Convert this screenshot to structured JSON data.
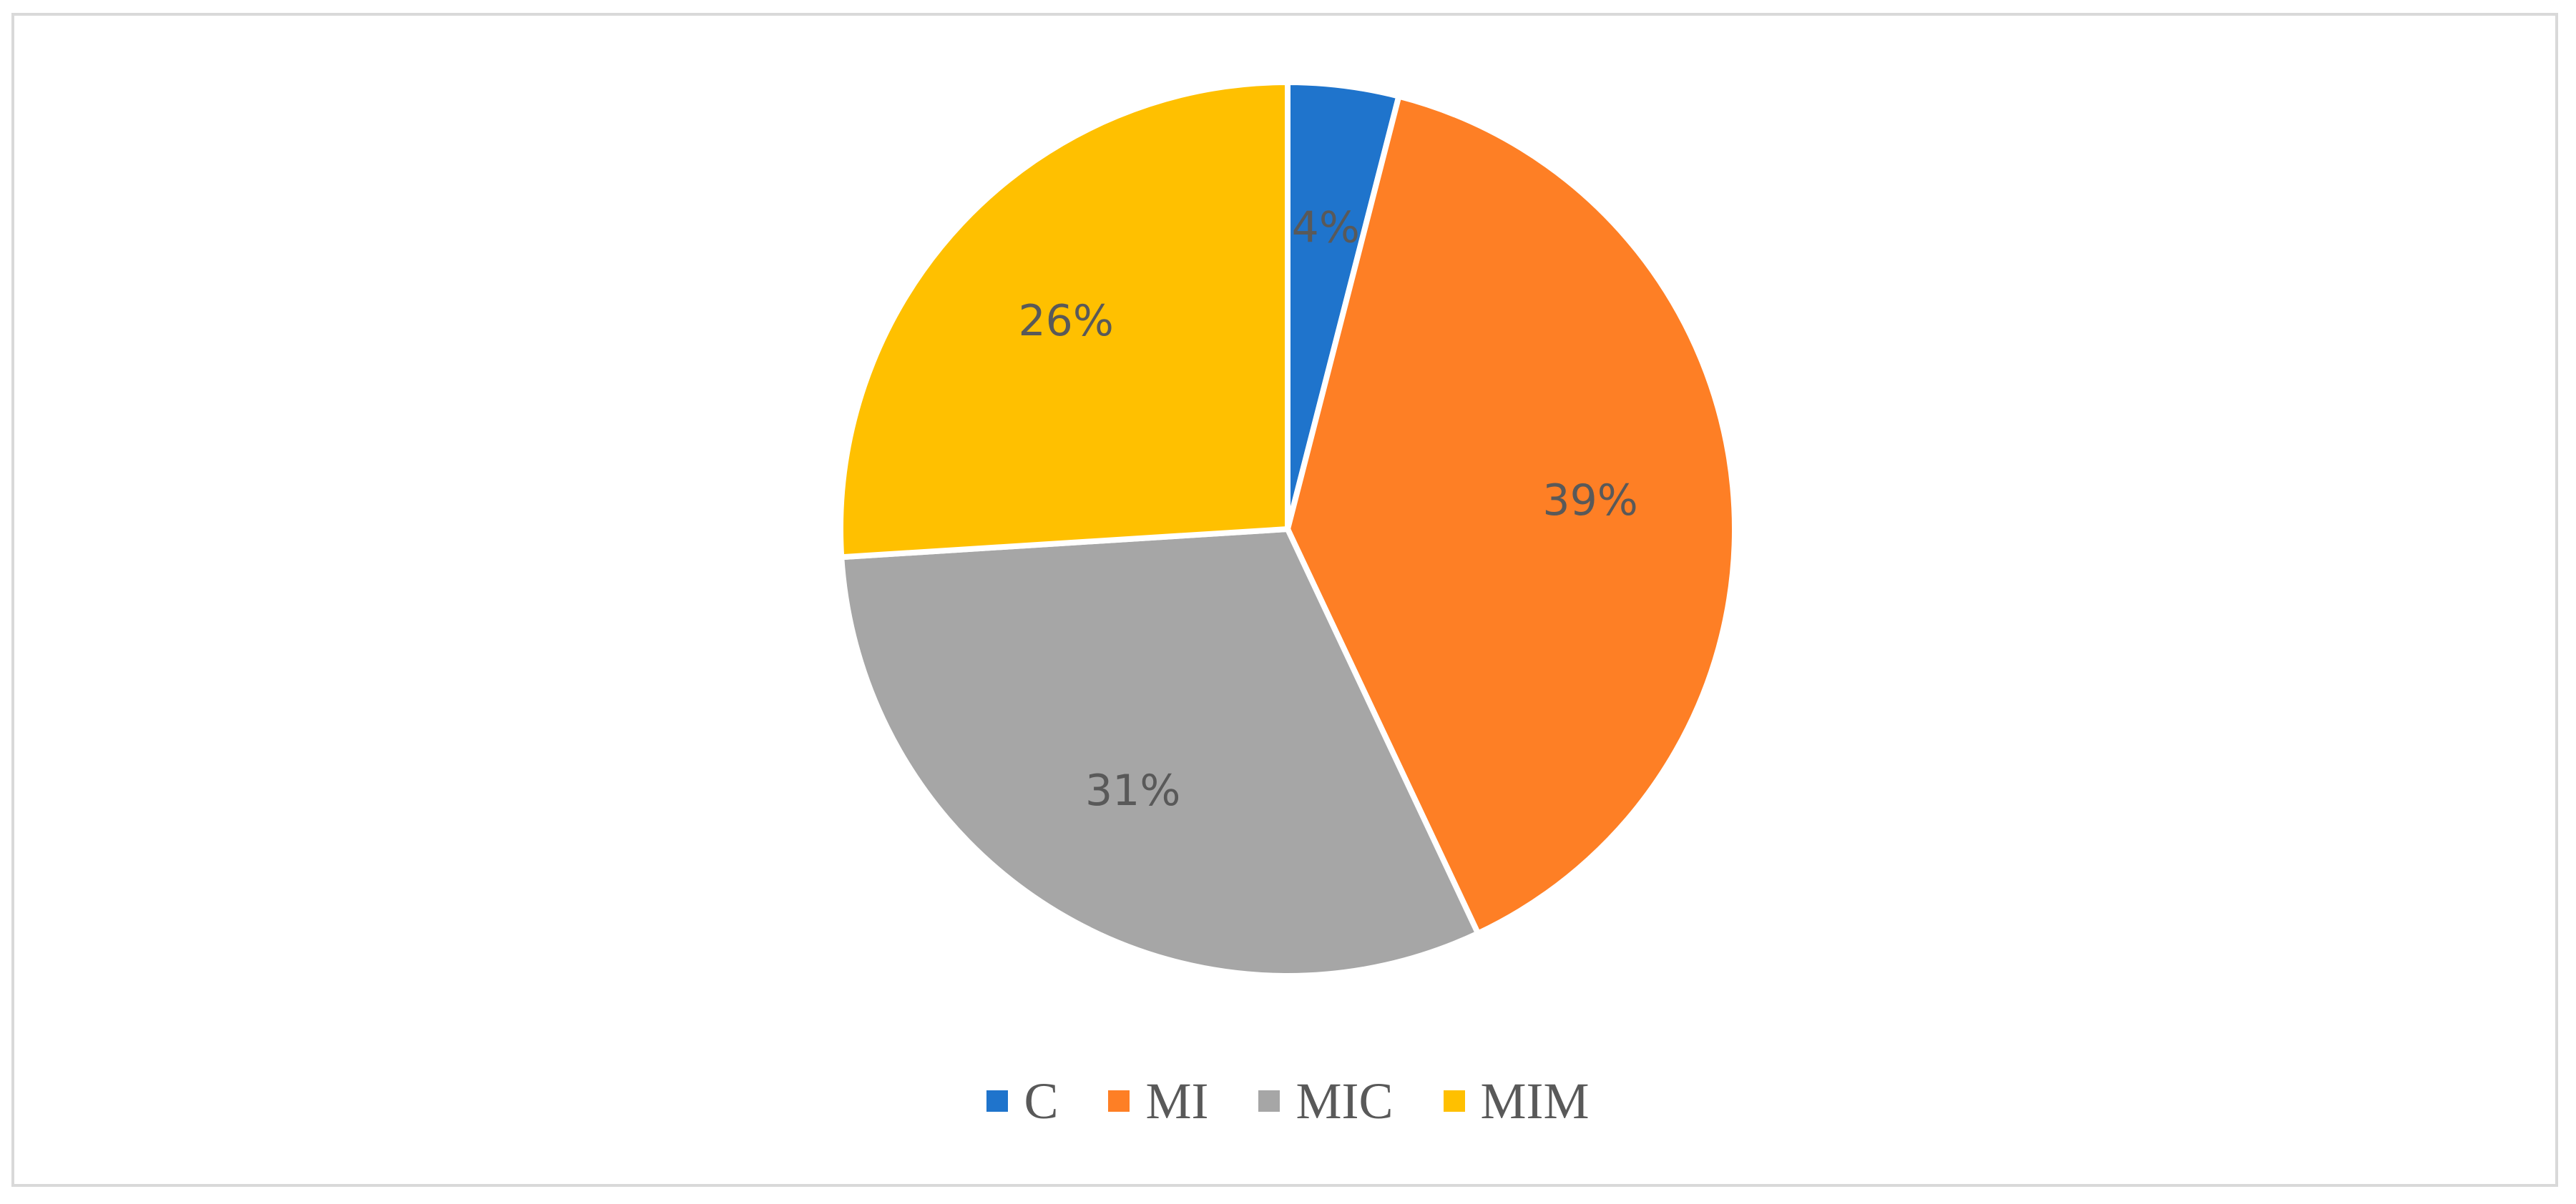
{
  "chart_data": {
    "type": "pie",
    "categories": [
      "C",
      "MI",
      "MIC",
      "MIM"
    ],
    "values": [
      4,
      39,
      31,
      26
    ],
    "data_labels": [
      "4%",
      "39%",
      "31%",
      "26%"
    ],
    "colors": [
      "#1F74CC",
      "#FE7F25",
      "#A6A6A6",
      "#FFC000"
    ],
    "start_angle_deg": 0,
    "direction": "clockwise",
    "legend_position": "bottom",
    "title": ""
  }
}
